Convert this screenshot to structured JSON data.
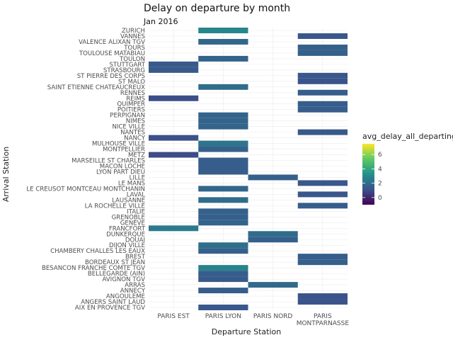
{
  "chart_data": {
    "type": "heatmap",
    "title": "Delay on departure by month",
    "subtitle": "Jan 2016",
    "xlabel": "Departure Station",
    "ylabel": "Arrival Station",
    "x_categories": [
      "PARIS EST",
      "PARIS LYON",
      "PARIS NORD",
      "PARIS MONTPARNASSE"
    ],
    "y_categories": [
      "AIX EN PROVENCE TGV",
      "ANGERS SAINT LAUD",
      "ANGOULEME",
      "ANNECY",
      "ARRAS",
      "AVIGNON TGV",
      "BELLEGARDE (AIN)",
      "BESANCON FRANCHE COMTE TGV",
      "BORDEAUX ST JEAN",
      "BREST",
      "CHAMBERY CHALLES LES EAUX",
      "DIJON VILLE",
      "DOUAI",
      "DUNKERQUE",
      "FRANCFORT",
      "GENEVE",
      "GRENOBLE",
      "ITALIE",
      "LA ROCHELLE VILLE",
      "LAUSANNE",
      "LAVAL",
      "LE CREUSOT MONTCEAU MONTCHANIN",
      "LE MANS",
      "LILLE",
      "LYON PART DIEU",
      "MACON LOCHE",
      "MARSEILLE ST CHARLES",
      "METZ",
      "MONTPELLIER",
      "MULHOUSE VILLE",
      "NANCY",
      "NANTES",
      "NICE VILLE",
      "NIMES",
      "PERPIGNAN",
      "POITIERS",
      "QUIMPER",
      "REIMS",
      "RENNES",
      "SAINT ETIENNE CHATEAUCREUX",
      "ST MALO",
      "ST PIERRE DES CORPS",
      "STRASBOURG",
      "STUTTGART",
      "TOULON",
      "TOULOUSE MATABIAU",
      "TOURS",
      "VALENCE ALIXAN TGV",
      "VANNES",
      "ZURICH"
    ],
    "cells": [
      {
        "x": "PARIS LYON",
        "y": "AIX EN PROVENCE TGV",
        "value": 1.3
      },
      {
        "x": "PARIS MONTPARNASSE",
        "y": "ANGERS SAINT LAUD",
        "value": 1.2
      },
      {
        "x": "PARIS MONTPARNASSE",
        "y": "ANGOULEME",
        "value": 1.2
      },
      {
        "x": "PARIS LYON",
        "y": "ANNECY",
        "value": 1.5
      },
      {
        "x": "PARIS NORD",
        "y": "ARRAS",
        "value": 1.9
      },
      {
        "x": "PARIS LYON",
        "y": "AVIGNON TGV",
        "value": 1.4
      },
      {
        "x": "PARIS LYON",
        "y": "BELLEGARDE (AIN)",
        "value": 1.5
      },
      {
        "x": "PARIS LYON",
        "y": "BESANCON FRANCHE COMTE TGV",
        "value": 2.8
      },
      {
        "x": "PARIS MONTPARNASSE",
        "y": "BORDEAUX ST JEAN",
        "value": 1.6
      },
      {
        "x": "PARIS MONTPARNASSE",
        "y": "BREST",
        "value": 1.5
      },
      {
        "x": "PARIS LYON",
        "y": "CHAMBERY CHALLES LES EAUX",
        "value": 1.6
      },
      {
        "x": "PARIS LYON",
        "y": "DIJON VILLE",
        "value": 2.1
      },
      {
        "x": "PARIS NORD",
        "y": "DOUAI",
        "value": 1.6
      },
      {
        "x": "PARIS NORD",
        "y": "DUNKERQUE",
        "value": 2.0
      },
      {
        "x": "PARIS EST",
        "y": "FRANCFORT",
        "value": 2.5
      },
      {
        "x": "PARIS LYON",
        "y": "GENEVE",
        "value": 1.7
      },
      {
        "x": "PARIS LYON",
        "y": "GRENOBLE",
        "value": 1.6
      },
      {
        "x": "PARIS LYON",
        "y": "ITALIE",
        "value": 1.6
      },
      {
        "x": "PARIS MONTPARNASSE",
        "y": "LA ROCHELLE VILLE",
        "value": 1.5
      },
      {
        "x": "PARIS LYON",
        "y": "LAUSANNE",
        "value": 2.0
      },
      {
        "x": "PARIS MONTPARNASSE",
        "y": "LAVAL",
        "value": 1.3
      },
      {
        "x": "PARIS LYON",
        "y": "LE CREUSOT MONTCEAU MONTCHANIN",
        "value": 1.8
      },
      {
        "x": "PARIS MONTPARNASSE",
        "y": "LE MANS",
        "value": 1.3
      },
      {
        "x": "PARIS NORD",
        "y": "LILLE",
        "value": 1.6
      },
      {
        "x": "PARIS LYON",
        "y": "LYON PART DIEU",
        "value": 1.5
      },
      {
        "x": "PARIS LYON",
        "y": "MACON LOCHE",
        "value": 1.5
      },
      {
        "x": "PARIS LYON",
        "y": "MARSEILLE ST CHARLES",
        "value": 1.5
      },
      {
        "x": "PARIS EST",
        "y": "METZ",
        "value": 1.0
      },
      {
        "x": "PARIS LYON",
        "y": "MONTPELLIER",
        "value": 1.6
      },
      {
        "x": "PARIS LYON",
        "y": "MULHOUSE VILLE",
        "value": 2.3
      },
      {
        "x": "PARIS EST",
        "y": "NANCY",
        "value": 1.1
      },
      {
        "x": "PARIS MONTPARNASSE",
        "y": "NANTES",
        "value": 1.4
      },
      {
        "x": "PARIS LYON",
        "y": "NICE VILLE",
        "value": 1.7
      },
      {
        "x": "PARIS LYON",
        "y": "NIMES",
        "value": 1.7
      },
      {
        "x": "PARIS LYON",
        "y": "PERPIGNAN",
        "value": 1.7
      },
      {
        "x": "PARIS MONTPARNASSE",
        "y": "POITIERS",
        "value": 1.5
      },
      {
        "x": "PARIS MONTPARNASSE",
        "y": "QUIMPER",
        "value": 1.5
      },
      {
        "x": "PARIS EST",
        "y": "REIMS",
        "value": 1.0
      },
      {
        "x": "PARIS MONTPARNASSE",
        "y": "RENNES",
        "value": 1.5
      },
      {
        "x": "PARIS LYON",
        "y": "SAINT ETIENNE CHATEAUCREUX",
        "value": 2.0
      },
      {
        "x": "PARIS MONTPARNASSE",
        "y": "ST MALO",
        "value": 1.2
      },
      {
        "x": "PARIS MONTPARNASSE",
        "y": "ST PIERRE DES CORPS",
        "value": 1.3
      },
      {
        "x": "PARIS EST",
        "y": "STRASBOURG",
        "value": 1.4
      },
      {
        "x": "PARIS EST",
        "y": "STUTTGART",
        "value": 1.4
      },
      {
        "x": "PARIS LYON",
        "y": "TOULON",
        "value": 1.7
      },
      {
        "x": "PARIS MONTPARNASSE",
        "y": "TOULOUSE MATABIAU",
        "value": 1.6
      },
      {
        "x": "PARIS MONTPARNASSE",
        "y": "TOURS",
        "value": 1.6
      },
      {
        "x": "PARIS LYON",
        "y": "VALENCE ALIXAN TGV",
        "value": 1.8
      },
      {
        "x": "PARIS MONTPARNASSE",
        "y": "VANNES",
        "value": 1.3
      },
      {
        "x": "PARIS LYON",
        "y": "ZURICH",
        "value": 2.9
      }
    ],
    "legend": {
      "title": "avg_delay_all_departing",
      "placement": "right",
      "range": [
        -1,
        7.5
      ],
      "ticks": [
        0,
        2,
        4,
        6
      ],
      "colormap": "viridis"
    },
    "grid": true
  }
}
